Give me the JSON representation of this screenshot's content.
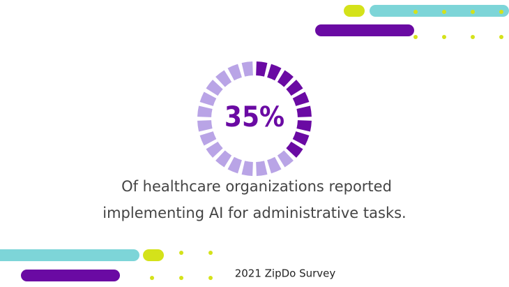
{
  "chart_data": {
    "type": "gauge",
    "values": [
      35
    ],
    "value_labels": [
      "35%"
    ],
    "color": "#6a0aa3",
    "track_color": "#b9a4e6",
    "caption": [
      "Of healthcare organizations reported",
      "implementing AI for administrative tasks."
    ],
    "source": "2021 ZipDo Survey"
  }
}
